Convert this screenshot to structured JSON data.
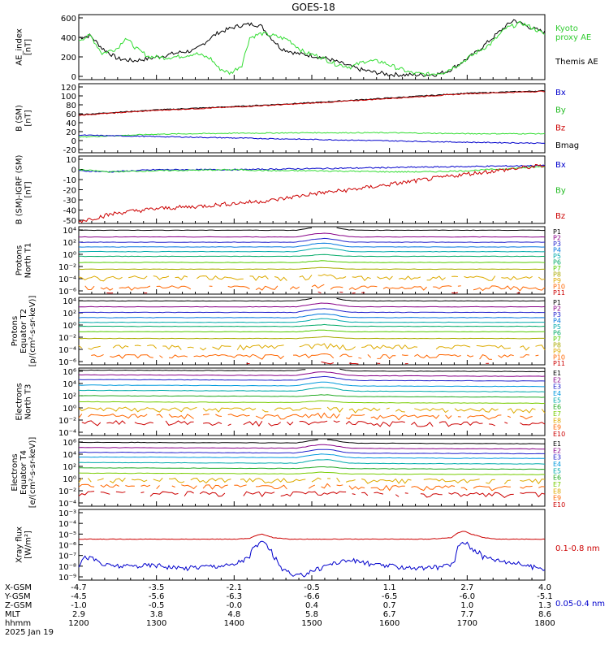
{
  "title": "GOES-18",
  "colors": {
    "black": "#000000",
    "green": "#33dd33",
    "blue": "#0000cc",
    "red": "#cc0000",
    "kyoto_label": "#33cc33"
  },
  "panels": [
    {
      "ylabel": [
        "AE_index",
        "[nT]"
      ],
      "yticks": [
        "600",
        "400",
        "200",
        "0"
      ],
      "legend": [
        {
          "text": "Kyoto",
          "color": "#33cc33"
        },
        {
          "text": "proxy AE",
          "color": "#33cc33"
        },
        {
          "text": "Themis AE",
          "color": "#000000"
        }
      ]
    },
    {
      "ylabel": [
        "B (SM)",
        "[nT]"
      ],
      "yticks": [
        "120",
        "100",
        "80",
        "60",
        "40",
        "20",
        "0",
        "-20"
      ],
      "legend": [
        {
          "text": "Bx",
          "color": "#0000cc"
        },
        {
          "text": "By",
          "color": "#22bb22"
        },
        {
          "text": "Bz",
          "color": "#cc0000"
        },
        {
          "text": "Bmag",
          "color": "#000000"
        }
      ]
    },
    {
      "ylabel": [
        "B (SM)-IGRF (SM)",
        "[nT]"
      ],
      "yticks": [
        "10",
        "0",
        "-10",
        "-20",
        "-30",
        "-40",
        "-50"
      ],
      "legend": [
        {
          "text": "Bx",
          "color": "#0000cc"
        },
        {
          "text": "By",
          "color": "#22bb22"
        },
        {
          "text": "Bz",
          "color": "#cc0000"
        }
      ]
    },
    {
      "ylabel": [
        "Protons",
        "North T1"
      ],
      "yticks": [
        "10⁴",
        "10²",
        "10⁰",
        "10⁻²",
        "10⁻⁴",
        "10⁻⁶"
      ],
      "channels": [
        "P1",
        "P2",
        "P3",
        "P4",
        "P5",
        "P6",
        "P7",
        "P8",
        "P9",
        "P10",
        "P11"
      ]
    },
    {
      "ylabel": [
        "Protons",
        "Equator T2",
        "[p/(cm²-s-sr-keV)]"
      ],
      "yticks": [
        "10⁴",
        "10²",
        "10⁰",
        "10⁻²",
        "10⁻⁴",
        "10⁻⁶"
      ],
      "channels": [
        "P1",
        "P2",
        "P3",
        "P4",
        "P5",
        "P6",
        "P7",
        "P8",
        "P9",
        "P10",
        "P11"
      ]
    },
    {
      "ylabel": [
        "Electrons",
        "North T3"
      ],
      "yticks": [
        "10⁶",
        "10⁴",
        "10²",
        "10⁰",
        "10⁻²",
        "10⁻⁴"
      ],
      "channels": [
        "E1",
        "E2",
        "E3",
        "E4",
        "E5",
        "E6",
        "E7",
        "E8",
        "E9",
        "E10"
      ]
    },
    {
      "ylabel": [
        "Electrons",
        "Equator T4",
        "[e/(cm²-s-sr-keV)]"
      ],
      "yticks": [
        "10⁶",
        "10⁴",
        "10²",
        "10⁰",
        "10⁻²",
        "10⁻⁴"
      ],
      "channels": [
        "E1",
        "E2",
        "E3",
        "E4",
        "E5",
        "E6",
        "E7",
        "E8",
        "E9",
        "E10"
      ]
    },
    {
      "ylabel": [
        "Xray flux",
        "[W/m²]"
      ],
      "yticks": [
        "10⁻³",
        "10⁻⁴",
        "10⁻⁵",
        "10⁻⁶",
        "10⁻⁷",
        "10⁻⁸",
        "10⁻⁹"
      ],
      "legend": [
        {
          "text": "0.1-0.8 nm",
          "color": "#cc0000"
        },
        {
          "text": "0.05-0.4 nm",
          "color": "#0000cc"
        }
      ]
    }
  ],
  "axis": {
    "row_labels": [
      "X-GSM",
      "Y-GSM",
      "Z-GSM",
      "MLT",
      "hhmm",
      "2025 Jan 19"
    ],
    "ticks": [
      {
        "x_gsm": "-4.7",
        "y_gsm": "-4.5",
        "z_gsm": "-1.0",
        "mlt": "2.9",
        "hhmm": "1200"
      },
      {
        "x_gsm": "-3.5",
        "y_gsm": "-5.6",
        "z_gsm": "-0.5",
        "mlt": "3.8",
        "hhmm": "1300"
      },
      {
        "x_gsm": "-2.1",
        "y_gsm": "-6.3",
        "z_gsm": "-0.0",
        "mlt": "4.8",
        "hhmm": "1400"
      },
      {
        "x_gsm": "-0.5",
        "y_gsm": "-6.6",
        "z_gsm": "0.4",
        "mlt": "5.8",
        "hhmm": "1500"
      },
      {
        "x_gsm": "1.1",
        "y_gsm": "-6.5",
        "z_gsm": "0.7",
        "mlt": "6.7",
        "hhmm": "1600"
      },
      {
        "x_gsm": "2.7",
        "y_gsm": "-6.0",
        "z_gsm": "1.0",
        "mlt": "7.7",
        "hhmm": "1700"
      },
      {
        "x_gsm": "4.0",
        "y_gsm": "-5.1",
        "z_gsm": "1.3",
        "mlt": "8.6",
        "hhmm": "1800"
      }
    ]
  },
  "chart_data": [
    {
      "type": "line",
      "panel": "AE index",
      "x_unit": "UT hour",
      "ylim": [
        0,
        620
      ],
      "series": [
        {
          "name": "Themis AE",
          "color": "#000000",
          "x": [
            12.0,
            12.15,
            12.3,
            12.5,
            12.7,
            12.9,
            13.1,
            13.3,
            13.5,
            13.7,
            13.8,
            14.0,
            14.1,
            14.25,
            14.35,
            14.45,
            14.6,
            14.8,
            15.0,
            15.2,
            15.4,
            15.6,
            15.8,
            16.0,
            16.2,
            16.4,
            16.6,
            16.75,
            16.9,
            17.1,
            17.3,
            17.45,
            17.6,
            17.8,
            18.0
          ],
          "y": [
            400,
            420,
            300,
            200,
            180,
            200,
            230,
            260,
            280,
            400,
            450,
            500,
            520,
            530,
            510,
            420,
            300,
            250,
            230,
            200,
            150,
            100,
            70,
            50,
            45,
            45,
            50,
            80,
            150,
            250,
            380,
            480,
            570,
            500,
            450
          ]
        },
        {
          "name": "Kyoto",
          "color": "#33dd33",
          "x": [
            12.0,
            12.15,
            12.3,
            12.5,
            12.6,
            12.75,
            12.9,
            13.1,
            13.3,
            13.5,
            13.7,
            13.8,
            13.95,
            14.1,
            14.2,
            14.35,
            14.5,
            14.7,
            14.9,
            15.1,
            15.3,
            15.5,
            15.7,
            15.9,
            16.1,
            16.3,
            16.5,
            16.7,
            16.9,
            17.1,
            17.3,
            17.5,
            17.7,
            17.85,
            18.0
          ],
          "y": [
            380,
            420,
            250,
            300,
            400,
            290,
            220,
            210,
            220,
            250,
            200,
            110,
            60,
            140,
            400,
            440,
            420,
            380,
            260,
            220,
            150,
            120,
            180,
            170,
            110,
            60,
            50,
            70,
            150,
            250,
            340,
            490,
            540,
            490,
            430
          ]
        }
      ]
    },
    {
      "type": "line",
      "panel": "B (SM)",
      "x_unit": "UT hour",
      "ylim": [
        -25,
        120
      ],
      "series": [
        {
          "name": "Bmag",
          "color": "#000000",
          "x": [
            12.0,
            13.0,
            14.0,
            15.0,
            16.0,
            17.0,
            18.0
          ],
          "y": [
            55,
            65,
            72,
            80,
            90,
            100,
            105
          ]
        },
        {
          "name": "Bz",
          "color": "#cc0000",
          "x": [
            12.0,
            13.0,
            14.0,
            15.0,
            16.0,
            17.0,
            18.0
          ],
          "y": [
            54,
            64,
            71,
            79,
            89,
            99,
            104
          ]
        },
        {
          "name": "By",
          "color": "#33dd33",
          "x": [
            12.0,
            13.0,
            14.0,
            15.0,
            16.0,
            17.0,
            18.0
          ],
          "y": [
            8,
            14,
            16,
            17,
            17,
            15,
            15
          ]
        },
        {
          "name": "Bx",
          "color": "#0000cc",
          "x": [
            12.0,
            13.0,
            14.0,
            15.0,
            16.0,
            17.0,
            18.0
          ],
          "y": [
            12,
            9,
            6,
            3,
            0,
            -3,
            -5
          ]
        }
      ]
    },
    {
      "type": "line",
      "panel": "B (SM)-IGRF (SM)",
      "x_unit": "UT hour",
      "ylim": [
        -52,
        12
      ],
      "series": [
        {
          "name": "Bx",
          "color": "#0000cc",
          "x": [
            12.0,
            12.4,
            13.0,
            14.0,
            15.0,
            16.0,
            17.0,
            18.0
          ],
          "y": [
            -2,
            -3,
            -1,
            -1,
            0,
            1,
            2,
            3
          ]
        },
        {
          "name": "By",
          "color": "#33dd33",
          "x": [
            12.0,
            12.4,
            13.0,
            14.0,
            14.5,
            15.0,
            16.0,
            16.5,
            17.0,
            17.5,
            18.0
          ],
          "y": [
            -1,
            -3,
            -2,
            -1,
            -2,
            -2,
            -3,
            -3,
            -2,
            0,
            2
          ]
        },
        {
          "name": "Bz",
          "color": "#cc0000",
          "x": [
            12.0,
            12.5,
            13.0,
            13.5,
            14.0,
            14.5,
            15.0,
            15.5,
            16.0,
            16.5,
            17.0,
            17.5,
            18.0
          ],
          "y": [
            -50,
            -42,
            -38,
            -36,
            -33,
            -30,
            -24,
            -20,
            -15,
            -10,
            -5,
            -1,
            3
          ]
        }
      ]
    },
    {
      "type": "line",
      "panel": "Protons North T1",
      "y_scale": "log",
      "ylim": [
        1e-06,
        10000.0
      ],
      "series_names": [
        "P1",
        "P2",
        "P3",
        "P4",
        "P5",
        "P6",
        "P7",
        "P8",
        "P9",
        "P10",
        "P11"
      ],
      "series_colors": [
        "#000000",
        "#880088",
        "#2222cc",
        "#0077dd",
        "#00aaaa",
        "#00aa66",
        "#55cc00",
        "#aaaa00",
        "#ddaa00",
        "#ff6600",
        "#cc0000"
      ],
      "values_at_1200": [
        3000,
        300,
        50,
        10,
        2,
        0.4,
        0.05,
        0.005,
        0.0003,
        1e-05,
        1e-06
      ]
    },
    {
      "type": "line",
      "panel": "Protons Equator T2",
      "y_scale": "log",
      "ylim": [
        1e-06,
        10000.0
      ],
      "series_names": [
        "P1",
        "P2",
        "P3",
        "P4",
        "P5",
        "P6",
        "P7",
        "P8",
        "P9",
        "P10",
        "P11"
      ],
      "series_colors": [
        "#000000",
        "#880088",
        "#2222cc",
        "#0077dd",
        "#00aaaa",
        "#00aa66",
        "#55cc00",
        "#aaaa00",
        "#ddaa00",
        "#ff6600",
        "#cc0000"
      ],
      "values_at_1200": [
        3000,
        400,
        60,
        10,
        2,
        0.5,
        0.08,
        0.008,
        0.0005,
        2e-05,
        1e-06
      ]
    },
    {
      "type": "line",
      "panel": "Electrons North T3",
      "y_scale": "log",
      "ylim": [
        0.0001,
        1000000.0
      ],
      "series_names": [
        "E1",
        "E2",
        "E3",
        "E4",
        "E5",
        "E6",
        "E7",
        "E8",
        "E9",
        "E10"
      ],
      "series_colors": [
        "#000000",
        "#880088",
        "#2222cc",
        "#0099dd",
        "#00aaaa",
        "#22aa22",
        "#77cc00",
        "#ddaa00",
        "#ff6600",
        "#cc0000"
      ],
      "values_at_1200": [
        500000,
        100000,
        20000,
        3000,
        500,
        80,
        10,
        1,
        0.1,
        0.01
      ]
    },
    {
      "type": "line",
      "panel": "Electrons Equator T4",
      "y_scale": "log",
      "ylim": [
        0.0001,
        1000000.0
      ],
      "series_names": [
        "E1",
        "E2",
        "E3",
        "E4",
        "E5",
        "E6",
        "E7",
        "E8",
        "E9",
        "E10"
      ],
      "series_colors": [
        "#000000",
        "#880088",
        "#2222cc",
        "#0099dd",
        "#00aaaa",
        "#22aa22",
        "#77cc00",
        "#ddaa00",
        "#ff6600",
        "#cc0000"
      ],
      "values_at_1200": [
        300000,
        50000,
        10000,
        2000,
        300,
        50,
        8,
        1,
        0.1,
        0.01
      ]
    },
    {
      "type": "line",
      "panel": "Xray flux",
      "y_scale": "log",
      "ylim": [
        1e-09,
        0.001
      ],
      "series": [
        {
          "name": "0.1-0.8 nm",
          "color": "#cc0000",
          "x": [
            12.0,
            12.5,
            13.0,
            13.5,
            14.0,
            14.2,
            14.35,
            14.5,
            14.7,
            15.0,
            15.5,
            16.0,
            16.5,
            16.8,
            16.95,
            17.05,
            17.2,
            17.4,
            17.7,
            18.0
          ],
          "y": [
            3e-06,
            3e-06,
            3e-06,
            3e-06,
            3e-06,
            3.5e-06,
            8e-06,
            4e-06,
            3e-06,
            3e-06,
            3e-06,
            3e-06,
            3e-06,
            4e-06,
            1.5e-05,
            8e-06,
            4e-06,
            3e-06,
            3e-06,
            3e-06
          ]
        },
        {
          "name": "0.05-0.4 nm",
          "color": "#0000cc",
          "x": [
            12.0,
            12.1,
            12.3,
            12.6,
            13.0,
            13.3,
            13.6,
            14.0,
            14.2,
            14.35,
            14.5,
            14.6,
            14.75,
            14.9,
            15.1,
            15.3,
            15.5,
            15.8,
            16.1,
            16.4,
            16.7,
            16.85,
            16.95,
            17.05,
            17.2,
            17.4,
            17.6,
            17.8,
            18.0
          ],
          "y": [
            2e-08,
            1e-07,
            2e-08,
            1.5e-08,
            2e-08,
            1e-08,
            1.5e-08,
            2e-08,
            8e-08,
            1.5e-06,
            1e-07,
            1e-08,
            2e-09,
            3e-09,
            1e-08,
            3e-08,
            5e-08,
            2e-08,
            1.5e-08,
            1e-08,
            1.5e-08,
            3e-08,
            2e-06,
            5e-07,
            1e-07,
            5e-08,
            3e-08,
            1.5e-08,
            1e-08
          ]
        }
      ]
    }
  ]
}
